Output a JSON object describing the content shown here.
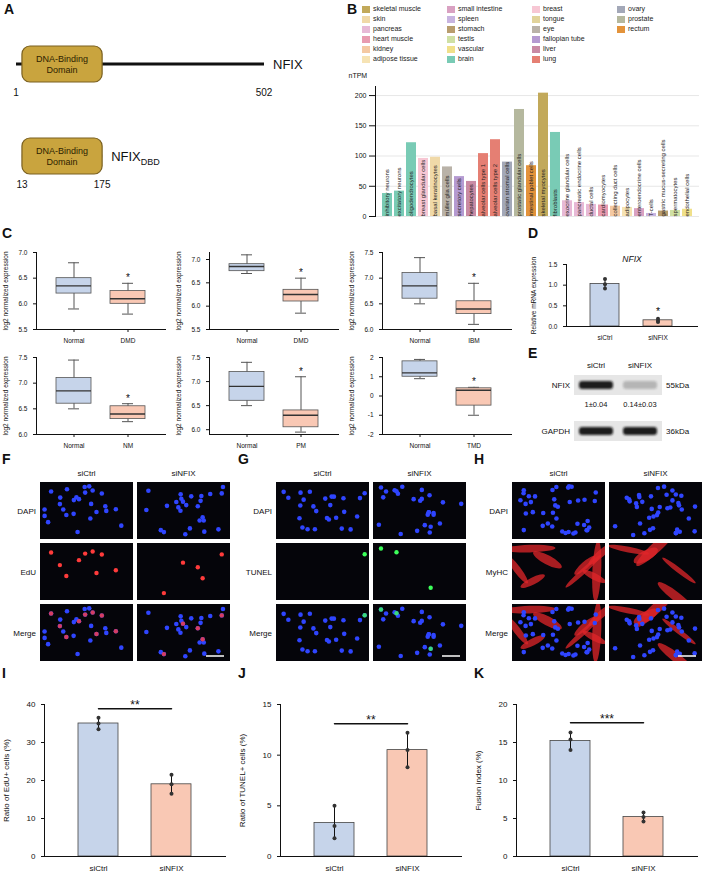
{
  "diagram": {
    "panel": "A",
    "domain_label": "DNA-Binding Domain",
    "constructs": [
      {
        "name": "NFIX",
        "start": 1,
        "end": 502
      },
      {
        "name": "NFIX",
        "subscript": "DBD",
        "start": 13,
        "end": 175
      }
    ]
  },
  "chart_data": [
    {
      "panel": "B",
      "type": "bar",
      "y_label": "nTPM",
      "categories": [
        "inhibitory neurons",
        "excitatory neurons",
        "oligodendrocytes",
        "breast glandular cells",
        "basal keratinocytes",
        "müller glia cells",
        "secretory cells",
        "hepatocytes",
        "alveolar cells type 1",
        "alveolar cells type 2",
        "ovarian stromal cells",
        "prostatic glandular cells",
        "intestinal goblet cells",
        "skeletal myocytes",
        "fibroblasts",
        "exocrine glandular cells",
        "pancreatic endocrine cells",
        "ductal cells",
        "cardiomyocytes",
        "collecting duct cells",
        "adipocytes",
        "enteroendocrine cells",
        "T-cells",
        "gastric mucus-secreting cells",
        "spermatocytes",
        "endothelial cells"
      ],
      "values": [
        38,
        42,
        122,
        96,
        98,
        82,
        66,
        58,
        104,
        127,
        90,
        177,
        84,
        204,
        139,
        26,
        23,
        20,
        19,
        17,
        15,
        13,
        5,
        9,
        10,
        12
      ],
      "colors": [
        "#79cbb5",
        "#79cbb5",
        "#79cbb5",
        "#f7c7d4",
        "#f0d9a8",
        "#b9b2a8",
        "#b59ad1",
        "#c98aa4",
        "#e57f73",
        "#e57f73",
        "#a3a8b8",
        "#b5b89e",
        "#e3933b",
        "#c2a95a",
        "#79cbb5",
        "#e7b9d6",
        "#e7b9d6",
        "#e7b9d6",
        "#e89bb0",
        "#f4c9a3",
        "#f6e3b4",
        "#d9a1c2",
        "#c8b4e0",
        "#b89d6e",
        "#cfe0a4",
        "#f0e08a"
      ],
      "ylim": [
        0,
        215
      ],
      "yticks": [
        0,
        50,
        100,
        150,
        200
      ],
      "grid": true,
      "tick_labels": "y",
      "legend": "top",
      "legend_entries": [
        {
          "name": "skeletal muscle",
          "color": "#c2a95a"
        },
        {
          "name": "skin",
          "color": "#f0d9a8"
        },
        {
          "name": "pancreas",
          "color": "#e7b9d6"
        },
        {
          "name": "heart muscle",
          "color": "#e89bb0"
        },
        {
          "name": "kidney",
          "color": "#f4c9a3"
        },
        {
          "name": "adipose tissue",
          "color": "#f6e3b4"
        },
        {
          "name": "small intestine",
          "color": "#d9a1c2"
        },
        {
          "name": "spleen",
          "color": "#c8b4e0"
        },
        {
          "name": "stomach",
          "color": "#b89d6e"
        },
        {
          "name": "testis",
          "color": "#cfe0a4"
        },
        {
          "name": "vascular",
          "color": "#f0e08a"
        },
        {
          "name": "brain",
          "color": "#79cbb5"
        },
        {
          "name": "breast",
          "color": "#f7c7d4"
        },
        {
          "name": "tongue",
          "color": "#e1d39b"
        },
        {
          "name": "eye",
          "color": "#b9b2a8"
        },
        {
          "name": "fallopian tube",
          "color": "#b59ad1"
        },
        {
          "name": "liver",
          "color": "#c98aa4"
        },
        {
          "name": "lung",
          "color": "#e57f73"
        },
        {
          "name": "ovary",
          "color": "#a3a8b8"
        },
        {
          "name": "prostate",
          "color": "#b5b89e"
        },
        {
          "name": "rectum",
          "color": "#e3933b"
        }
      ]
    },
    {
      "panel": "C",
      "type": "box",
      "y_label": "log2 normalized expression",
      "categories": [
        "Normal",
        "DMD"
      ],
      "boxes": [
        {
          "min": 5.9,
          "q1": 6.2,
          "median": 6.35,
          "q3": 6.5,
          "max": 6.8
        },
        {
          "min": 5.8,
          "q1": 6.0,
          "median": 6.1,
          "q3": 6.25,
          "max": 6.4
        }
      ],
      "colors": [
        "#c6d4ea",
        "#f9c8b4"
      ],
      "ylim": [
        5.5,
        7
      ],
      "yticks": [
        5.5,
        {
          "value": 6,
          "label": "6.0"
        },
        6.5,
        {
          "value": 7,
          "label": "7.0"
        }
      ],
      "annotations": [
        {
          "category": "DMD",
          "text": "*"
        }
      ]
    },
    {
      "type": "box",
      "y_label": "log2 normalized expression",
      "categories": [
        "Normal",
        "DMD"
      ],
      "boxes": [
        {
          "min": 6.7,
          "q1": 6.75,
          "median": 6.85,
          "q3": 6.9,
          "max": 7.1
        },
        {
          "min": 5.85,
          "q1": 6.1,
          "median": 6.25,
          "q3": 6.35,
          "max": 6.6
        }
      ],
      "colors": [
        "#c6d4ea",
        "#f9c8b4"
      ],
      "ylim": [
        5.5,
        7.15
      ],
      "yticks": [
        5.5,
        {
          "value": 6,
          "label": "6.0"
        },
        6.5,
        {
          "value": 7,
          "label": "7.0"
        }
      ],
      "annotations": [
        {
          "category": "DMD",
          "text": "*"
        }
      ]
    },
    {
      "type": "box",
      "y_label": "log2 normalized expression",
      "categories": [
        "Normal",
        "IBM"
      ],
      "boxes": [
        {
          "min": 6.5,
          "q1": 6.6,
          "median": 6.85,
          "q3": 7.1,
          "max": 7.4
        },
        {
          "min": 6.1,
          "q1": 6.3,
          "median": 6.4,
          "q3": 6.55,
          "max": 6.9
        }
      ],
      "colors": [
        "#c6d4ea",
        "#f9c8b4"
      ],
      "ylim": [
        6,
        7.5
      ],
      "yticks": [
        {
          "value": 6,
          "label": "6.0"
        },
        6.5,
        {
          "value": 7,
          "label": "7.0"
        },
        7.5
      ],
      "annotations": [
        {
          "category": "IBM",
          "text": "*"
        }
      ]
    },
    {
      "type": "box",
      "y_label": "log2 normalized expression",
      "categories": [
        "Normal",
        "NM"
      ],
      "boxes": [
        {
          "min": 6.5,
          "q1": 6.6,
          "median": 6.85,
          "q3": 7.1,
          "max": 7.45
        },
        {
          "min": 6.25,
          "q1": 6.3,
          "median": 6.4,
          "q3": 6.55,
          "max": 6.6
        }
      ],
      "colors": [
        "#c6d4ea",
        "#f9c8b4"
      ],
      "ylim": [
        6,
        7.5
      ],
      "yticks": [
        {
          "value": 6,
          "label": "6.0"
        },
        6.5,
        {
          "value": 7,
          "label": "7.0"
        },
        7.5
      ],
      "annotations": [
        {
          "category": "NM",
          "text": "*"
        }
      ]
    },
    {
      "type": "box",
      "y_label": "log2 normalized expression",
      "categories": [
        "Normal",
        "PM"
      ],
      "boxes": [
        {
          "min": 6.5,
          "q1": 6.6,
          "median": 6.9,
          "q3": 7.2,
          "max": 7.4
        },
        {
          "min": 5.95,
          "q1": 6.05,
          "median": 6.3,
          "q3": 6.4,
          "max": 7.1
        }
      ],
      "colors": [
        "#c6d4ea",
        "#f9c8b4"
      ],
      "ylim": [
        5.9,
        7.5
      ],
      "yticks": [
        {
          "value": 6,
          "label": "6.0"
        },
        6.5,
        {
          "value": 7,
          "label": "7.0"
        },
        7.5
      ],
      "annotations": [
        {
          "category": "PM",
          "text": "*"
        }
      ]
    },
    {
      "type": "box",
      "y_label": "log2 normalized expression",
      "categories": [
        "Normal",
        "TMD"
      ],
      "boxes": [
        {
          "min": 0.9,
          "q1": 1.0,
          "median": 1.2,
          "q3": 1.8,
          "max": 1.9
        },
        {
          "min": -1.0,
          "q1": -0.5,
          "median": 0.3,
          "q3": 0.4,
          "max": 0.45
        }
      ],
      "colors": [
        "#c6d4ea",
        "#f9c8b4"
      ],
      "ylim": [
        -2,
        2
      ],
      "yticks": [
        -2,
        -1,
        0,
        1,
        2
      ],
      "annotations": [
        {
          "category": "TMD",
          "text": "*"
        }
      ]
    },
    {
      "panel": "D",
      "type": "bar",
      "title": "NFIX",
      "y_label": "Relative mRNA expression",
      "categories": [
        "siCtrl",
        "siNFIX"
      ],
      "values": [
        1.03,
        0.15
      ],
      "errors": [
        0.12,
        0.05
      ],
      "points": [
        [
          0.92,
          1.02,
          1.15
        ],
        [
          0.11,
          0.14,
          0.19
        ]
      ],
      "colors": [
        "#c6d4ea",
        "#f9c8b4"
      ],
      "ylim": [
        0,
        1.5
      ],
      "yticks": [
        {
          "value": 0,
          "label": "0.0"
        },
        0.5,
        {
          "value": 1,
          "label": "1.0"
        },
        1.5
      ],
      "annotations": [
        {
          "category": "siNFIX",
          "text": "*"
        }
      ]
    },
    {
      "panel": "I",
      "type": "bar",
      "y_label": "Ratio of EdU+ cells (%)",
      "categories": [
        "siCtrl",
        "siNFIX"
      ],
      "values": [
        35,
        19
      ],
      "errors": [
        1.5,
        2.5
      ],
      "points": [
        [
          33.5,
          35,
          36.5
        ],
        [
          16.5,
          19,
          21.5
        ]
      ],
      "colors": [
        "#c6d4ea",
        "#f9c8b4"
      ],
      "ylim": [
        0,
        40
      ],
      "yticks": [
        0,
        10,
        20,
        30,
        40
      ],
      "annotations": [
        {
          "categories": [
            "siCtrl",
            "siNFIX"
          ],
          "text": "**"
        }
      ]
    },
    {
      "panel": "J",
      "type": "bar",
      "y_label": "Ratio of TUNEL+ cells (%)",
      "categories": [
        "siCtrl",
        "siNFIX"
      ],
      "values": [
        3.3,
        10.5
      ],
      "errors": [
        1.6,
        1.7
      ],
      "points": [
        [
          1.8,
          3,
          5
        ],
        [
          8.8,
          10.5,
          12.2
        ]
      ],
      "colors": [
        "#c6d4ea",
        "#f9c8b4"
      ],
      "ylim": [
        0,
        15
      ],
      "yticks": [
        0,
        5,
        10,
        15
      ],
      "annotations": [
        {
          "categories": [
            "siCtrl",
            "siNFIX"
          ],
          "text": "**"
        }
      ]
    },
    {
      "panel": "K",
      "type": "bar",
      "y_label": "Fusion index (%)",
      "categories": [
        "siCtrl",
        "siNFIX"
      ],
      "values": [
        15.2,
        5.2
      ],
      "errors": [
        1.2,
        0.6
      ],
      "points": [
        [
          14,
          15.4,
          16.3
        ],
        [
          4.6,
          5.2,
          5.8
        ]
      ],
      "colors": [
        "#c6d4ea",
        "#f9c8b4"
      ],
      "ylim": [
        0,
        20
      ],
      "yticks": [
        0,
        5,
        10,
        15,
        20
      ],
      "annotations": [
        {
          "categories": [
            "siCtrl",
            "siNFIX"
          ],
          "text": "***"
        }
      ]
    }
  ],
  "blot": {
    "panel": "E",
    "lanes": [
      "siCtrl",
      "siNFIX"
    ],
    "rows": [
      {
        "protein": "NFIX",
        "size": "55kDa",
        "lane_labels": [
          "1±0.04",
          "0.14±0.03"
        ]
      },
      {
        "protein": "GAPDH",
        "size": "36kDa"
      }
    ]
  },
  "images": [
    {
      "panel": "F",
      "columns": [
        "siCtrl",
        "siNFIX"
      ],
      "rows": [
        "DAPI",
        "EdU",
        "Merge"
      ],
      "color": "#ff3b3b"
    },
    {
      "panel": "G",
      "columns": [
        "siCtrl",
        "siNFIX"
      ],
      "rows": [
        "DAPI",
        "TUNEL",
        "Merge"
      ],
      "color": "#3cff5a"
    },
    {
      "panel": "H",
      "columns": [
        "siCtrl",
        "siNFIX"
      ],
      "rows": [
        "DAPI",
        "MyHC",
        "Merge"
      ],
      "color": "#e0262a"
    }
  ]
}
